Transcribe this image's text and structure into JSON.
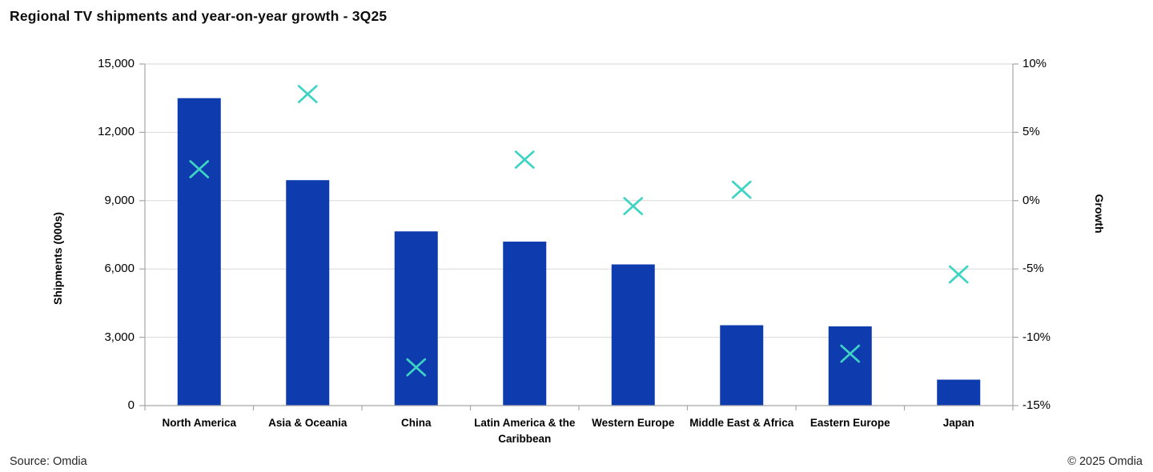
{
  "title": "Regional TV shipments and year-on-year growth - 3Q25",
  "footer": {
    "source": "Source: Omdia",
    "copyright": "© 2025 Omdia"
  },
  "colors": {
    "bar": "#0e3cae",
    "marker": "#3ed4c4",
    "grid": "#d9d9d9",
    "axis": "#a6a6a6",
    "text": "#000000"
  },
  "chart_data": {
    "type": "bar",
    "subtype": "combo: bars (left axis) + x-markers (right axis), dual y-axes",
    "title": "Regional TV shipments and year-on-year growth - 3Q25",
    "categories": [
      "North America",
      "Asia & Oceania",
      "China",
      "Latin America & the Caribbean",
      "Western Europe",
      "Middle East & Africa",
      "Eastern Europe",
      "Japan"
    ],
    "series": [
      {
        "name": "Shipments (000s)",
        "type": "bar",
        "axis": "left",
        "color": "#0e3cae",
        "values": [
          13500,
          9900,
          7650,
          7200,
          6200,
          3530,
          3480,
          1140
        ]
      },
      {
        "name": "Growth",
        "type": "scatter",
        "marker": "x",
        "axis": "right",
        "color": "#3ed4c4",
        "values": [
          2.3,
          7.8,
          -12.2,
          3.0,
          -0.4,
          0.8,
          -11.2,
          -5.4
        ]
      }
    ],
    "left_axis": {
      "label": "Shipments (000s)",
      "min": 0,
      "max": 15000,
      "tick_step": 3000,
      "tick_labels": [
        "0",
        "3,000",
        "6,000",
        "9,000",
        "12,000",
        "15,000"
      ]
    },
    "right_axis": {
      "label": "Growth",
      "min": -15,
      "max": 10,
      "tick_step": 5,
      "tick_labels": [
        "-15%",
        "-10%",
        "-5%",
        "0%",
        "5%",
        "10%"
      ]
    },
    "grid": true,
    "legend": "none"
  }
}
